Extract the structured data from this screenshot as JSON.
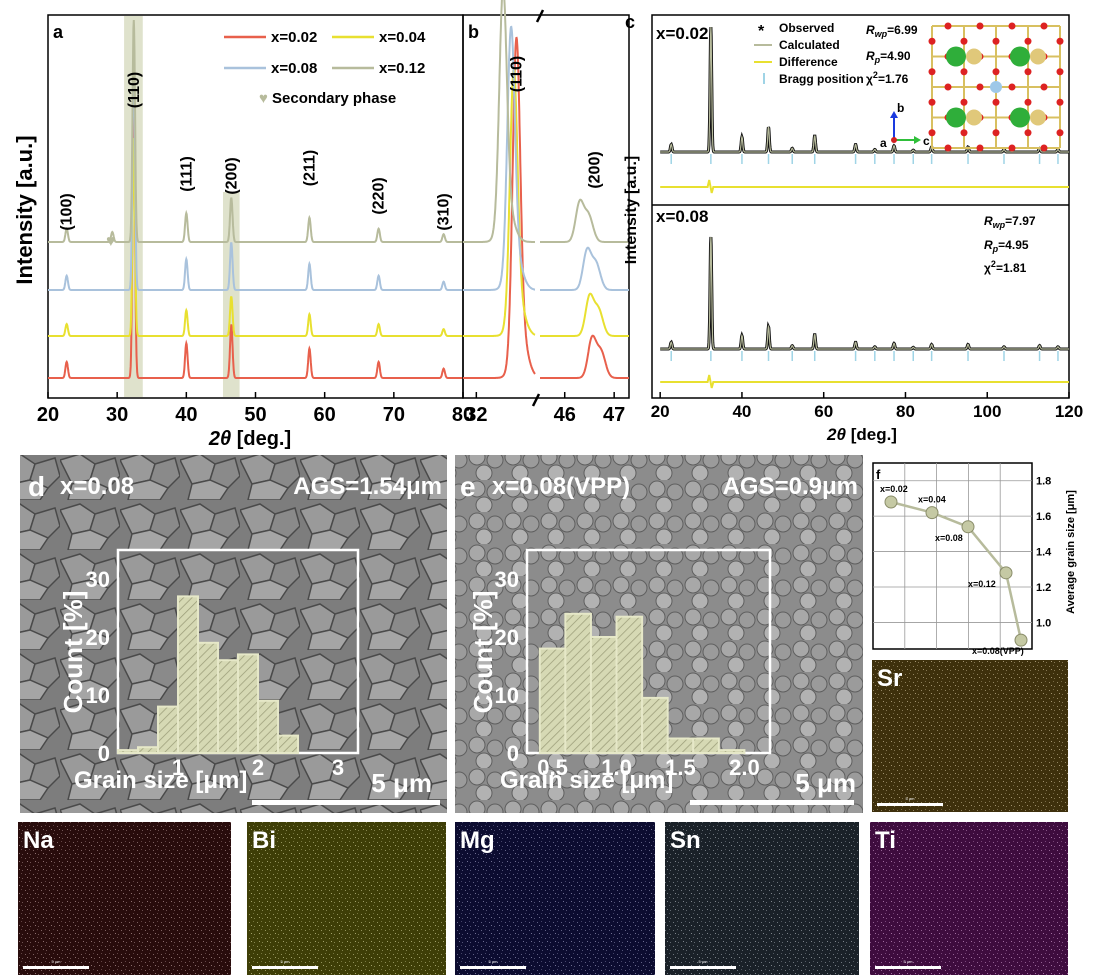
{
  "panel_a": {
    "letter": "a",
    "ylabel": "Intensity [a.u.]",
    "xlabel_sym": "2θ",
    "xlabel_unit": " [deg.]",
    "legend": [
      {
        "label": "x=0.02",
        "color": "#e8604c"
      },
      {
        "label": "x=0.04",
        "color": "#e8e030"
      },
      {
        "label": "x=0.08",
        "color": "#a9c2dc"
      },
      {
        "label": "x=0.12",
        "color": "#b7bb9c"
      }
    ],
    "secondary_label": "Secondary phase",
    "peak_labels": [
      "(100)",
      "(110)",
      "(111)",
      "(200)",
      "(211)",
      "(220)",
      "(310)"
    ],
    "xticks": [
      "20",
      "30",
      "40",
      "50",
      "60",
      "70",
      "80"
    ]
  },
  "panel_b": {
    "letter": "b",
    "peak_labels": [
      "(110)",
      "(200)"
    ],
    "xticks": [
      "32",
      "46",
      "47"
    ]
  },
  "panel_c": {
    "letter": "c",
    "ylabel": "Intensity [a.u.]",
    "xlabel_sym": "2θ",
    "xlabel_unit": " [deg.]",
    "xticks": [
      "20",
      "40",
      "60",
      "80",
      "100",
      "120"
    ],
    "legend": [
      "Observed",
      "Calculated",
      "Difference",
      "Bragg position"
    ],
    "top": {
      "label": "x=0.02",
      "rwp": "R",
      "rwp_sub": "wp",
      "rwp_val": "=6.99",
      "rp": "R",
      "rp_sub": "p",
      "rp_val": "=4.90",
      "chi": "χ",
      "chi_val": "=1.76"
    },
    "bottom": {
      "label": "x=0.08",
      "rwp": "R",
      "rwp_sub": "wp",
      "rwp_val": "=7.97",
      "rp": "R",
      "rp_sub": "p",
      "rp_val": "=4.95",
      "chi": "χ",
      "chi_val": "=1.81"
    },
    "axes": [
      "a",
      "b",
      "c"
    ]
  },
  "panel_d": {
    "letter": "d",
    "label": "x=0.08",
    "ags": "AGS=1.54μm",
    "scale": "5 μm",
    "ylabel": "Count [%]",
    "xlabel": "Grain size [μm]",
    "yticks": [
      "0",
      "10",
      "20",
      "30"
    ],
    "xticks": [
      "1",
      "2",
      "3"
    ]
  },
  "panel_e": {
    "letter": "e",
    "label": "x=0.08(VPP)",
    "ags": "AGS=0.9μm",
    "scale": "5 μm",
    "ylabel": "Count [%]",
    "xlabel": "Grain size [μm]",
    "yticks": [
      "0",
      "10",
      "20",
      "30"
    ],
    "xticks": [
      "0.5",
      "1.0",
      "1.5",
      "2.0"
    ]
  },
  "panel_f": {
    "letter": "f",
    "ylabel": "Average grain size [μm]",
    "yticks": [
      "1.0",
      "1.2",
      "1.4",
      "1.6",
      "1.8"
    ],
    "point_labels": [
      "x=0.02",
      "x=0.04",
      "x=0.08",
      "x=0.12",
      "x=0.08(VPP)"
    ]
  },
  "eds": {
    "labels": [
      "Sr",
      "Na",
      "Bi",
      "Mg",
      "Sn",
      "Ti"
    ],
    "colors": [
      "#8a6a1a",
      "#5a1a1a",
      "#8a8a10",
      "#1a1a6a",
      "#3a4a5a",
      "#8a1a8a"
    ],
    "scale": "5 μm"
  },
  "chart_data": [
    {
      "type": "line",
      "title": "",
      "xlabel": "2θ [deg.]",
      "ylabel": "Intensity [a.u.]",
      "xlim": [
        20,
        80
      ],
      "series": [
        {
          "name": "x=0.02",
          "peaks_2theta": [
            22.7,
            32.4,
            40.0,
            46.5,
            57.8,
            67.8,
            77.2
          ]
        },
        {
          "name": "x=0.04",
          "peaks_2theta": [
            22.7,
            32.4,
            40.0,
            46.5,
            57.8,
            67.8,
            77.2
          ]
        },
        {
          "name": "x=0.08",
          "peaks_2theta": [
            22.7,
            32.4,
            40.0,
            46.5,
            57.8,
            67.8,
            77.2
          ]
        },
        {
          "name": "x=0.12",
          "peaks_2theta": [
            22.7,
            29.3,
            32.4,
            40.0,
            46.5,
            57.8,
            67.8,
            77.2
          ]
        }
      ]
    },
    {
      "type": "bar",
      "xlabel": "Grain size [μm]",
      "ylabel": "Count [%]",
      "ylim": [
        0,
        35
      ],
      "bin_centers": [
        0.375,
        0.625,
        0.875,
        1.125,
        1.375,
        1.625,
        1.875,
        2.125,
        2.375,
        2.625,
        2.875
      ],
      "values": [
        0.5,
        1,
        8,
        27,
        19,
        16,
        17,
        9,
        3,
        0,
        0
      ]
    },
    {
      "type": "bar",
      "xlabel": "Grain size [μm]",
      "ylabel": "Count [%]",
      "ylim": [
        0,
        35
      ],
      "bin_centers": [
        0.5,
        0.7,
        0.9,
        1.1,
        1.3,
        1.5,
        1.7,
        1.9
      ],
      "values": [
        18,
        24,
        20,
        23.5,
        9.5,
        2.5,
        2.5,
        0.5
      ]
    },
    {
      "type": "line",
      "ylabel": "Average grain size [μm]",
      "ylim": [
        0.9,
        1.9
      ],
      "categories": [
        "x=0.02",
        "x=0.04",
        "x=0.08",
        "x=0.12",
        "x=0.08(VPP)"
      ],
      "values": [
        1.68,
        1.62,
        1.54,
        1.28,
        0.9
      ]
    }
  ]
}
